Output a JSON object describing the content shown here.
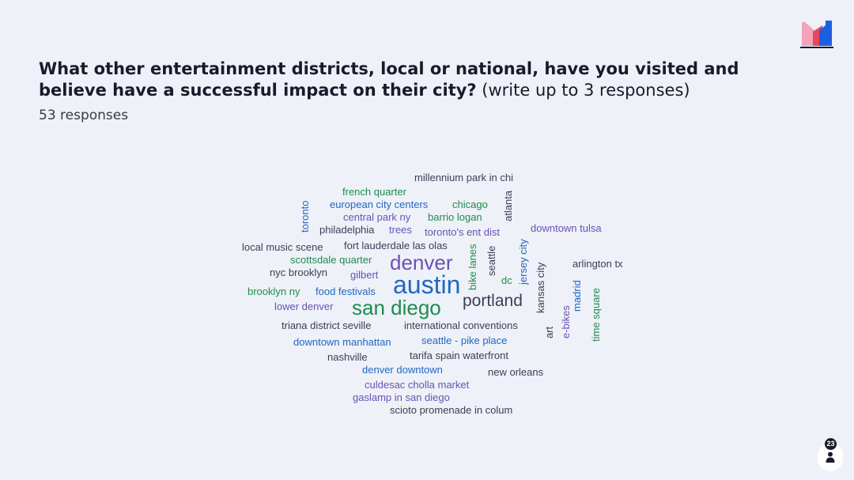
{
  "question": {
    "bold": "What other entertainment districts, local or national, have you visited and believe have a successful impact on their city?",
    "rest": " (write up to 3 responses)"
  },
  "responses": "53 responses",
  "voter_count": "23",
  "colors": {
    "dark": "#3a3f55",
    "green": "#1e8c4e",
    "blue": "#2068c4",
    "purple": "#6b51b5",
    "logo_pink": "#f4a3b8",
    "logo_red": "#e8465f",
    "logo_blue": "#1e5fe0"
  },
  "words": [
    "millennium park in chi",
    "french quarter",
    "european city centers",
    "chicago",
    "central park ny",
    "barrio logan",
    "philadelphia",
    "trees",
    "toronto's ent dist",
    "downtown tulsa",
    "fort lauderdale las olas",
    "local music scene",
    "scottsdale quarter",
    "denver",
    "arlington tx",
    "nyc brooklyn",
    "gilbert",
    "austin",
    "dc",
    "brooklyn ny",
    "food festivals",
    "portland",
    "lower denver",
    "san diego",
    "triana district seville",
    "international conventions",
    "downtown manhattan",
    "seattle - pike place",
    "nashville",
    "tarifa spain waterfront",
    "denver downtown",
    "new orleans",
    "culdesac cholla market",
    "gaslamp in san diego",
    "scioto promenade in colum",
    "toronto",
    "atlanta",
    "bike lanes",
    "seattle",
    "jersey city",
    "kansas city",
    "art",
    "e-bikes",
    "madrid",
    "time square"
  ]
}
